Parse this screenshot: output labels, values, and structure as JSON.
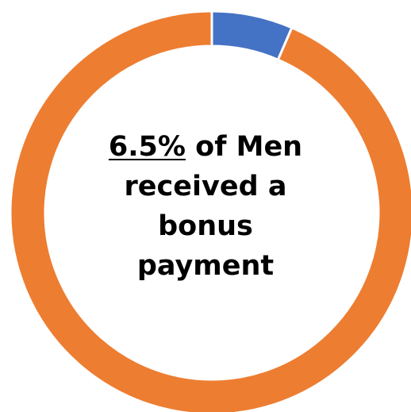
{
  "chart_data": {
    "type": "pie",
    "variant": "donut",
    "start_angle_deg": 0,
    "direction": "clockwise",
    "slices": [
      {
        "value": 6.5,
        "color": "#4472C4"
      },
      {
        "value": 93.5,
        "color": "#ED7D31"
      }
    ],
    "center_text": {
      "percent": "6.5%",
      "line1_rest": "of Men",
      "line2": "received a",
      "line3": "bonus",
      "line4": "payment"
    }
  }
}
